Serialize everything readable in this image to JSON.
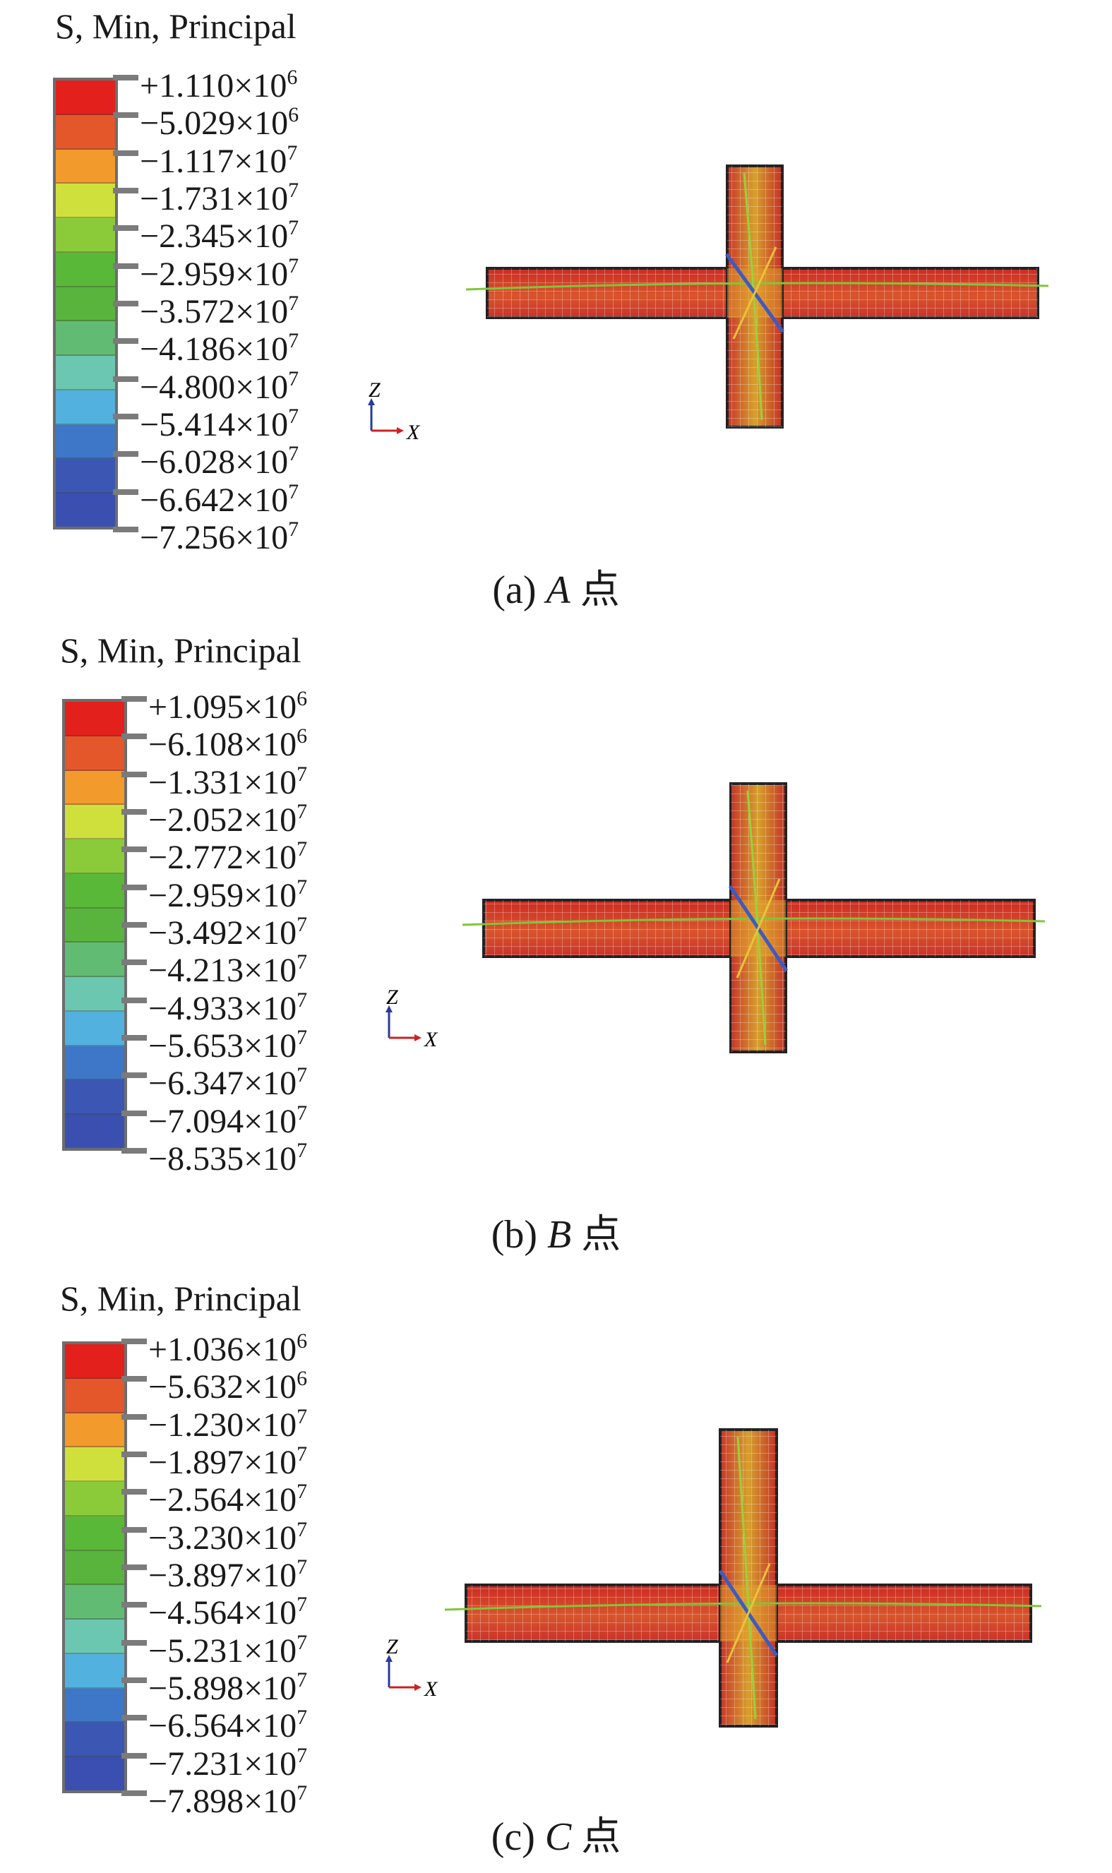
{
  "legend_title": "S, Min, Principal",
  "axis_labels": {
    "z": "Z",
    "x": "X"
  },
  "band_colors": [
    "#e3201c",
    "#e4572a",
    "#f29a2b",
    "#cfe03c",
    "#8bcb3a",
    "#59b838",
    "#58b43d",
    "#62bb72",
    "#6cc7b0",
    "#53b1df",
    "#3e76c8",
    "#3b57b3",
    "#3a4fb0"
  ],
  "panels": [
    {
      "id": "a",
      "caption_prefix": "(a) ",
      "caption_point": "A",
      "caption_suffix": " 点",
      "ticks": [
        {
          "mant": "+1.110×10",
          "exp": "6"
        },
        {
          "mant": "−5.029×10",
          "exp": "6"
        },
        {
          "mant": "−1.117×10",
          "exp": "7"
        },
        {
          "mant": "−1.731×10",
          "exp": "7"
        },
        {
          "mant": "−2.345×10",
          "exp": "7"
        },
        {
          "mant": "−2.959×10",
          "exp": "7"
        },
        {
          "mant": "−3.572×10",
          "exp": "7"
        },
        {
          "mant": "−4.186×10",
          "exp": "7"
        },
        {
          "mant": "−4.800×10",
          "exp": "7"
        },
        {
          "mant": "−5.414×10",
          "exp": "7"
        },
        {
          "mant": "−6.028×10",
          "exp": "7"
        },
        {
          "mant": "−6.642×10",
          "exp": "7"
        },
        {
          "mant": "−7.256×10",
          "exp": "7"
        }
      ]
    },
    {
      "id": "b",
      "caption_prefix": "(b) ",
      "caption_point": "B",
      "caption_suffix": " 点",
      "ticks": [
        {
          "mant": "+1.095×10",
          "exp": "6"
        },
        {
          "mant": "−6.108×10",
          "exp": "6"
        },
        {
          "mant": "−1.331×10",
          "exp": "7"
        },
        {
          "mant": "−2.052×10",
          "exp": "7"
        },
        {
          "mant": "−2.772×10",
          "exp": "7"
        },
        {
          "mant": "−2.959×10",
          "exp": "7"
        },
        {
          "mant": "−3.492×10",
          "exp": "7"
        },
        {
          "mant": "−4.213×10",
          "exp": "7"
        },
        {
          "mant": "−4.933×10",
          "exp": "7"
        },
        {
          "mant": "−5.653×10",
          "exp": "7"
        },
        {
          "mant": "−6.347×10",
          "exp": "7"
        },
        {
          "mant": "−7.094×10",
          "exp": "7"
        },
        {
          "mant": "−8.535×10",
          "exp": "7"
        }
      ]
    },
    {
      "id": "c",
      "caption_prefix": "(c) ",
      "caption_point": "C",
      "caption_suffix": " 点",
      "ticks": [
        {
          "mant": "+1.036×10",
          "exp": "6"
        },
        {
          "mant": "−5.632×10",
          "exp": "6"
        },
        {
          "mant": "−1.230×10",
          "exp": "7"
        },
        {
          "mant": "−1.897×10",
          "exp": "7"
        },
        {
          "mant": "−2.564×10",
          "exp": "7"
        },
        {
          "mant": "−3.230×10",
          "exp": "7"
        },
        {
          "mant": "−3.897×10",
          "exp": "7"
        },
        {
          "mant": "−4.564×10",
          "exp": "7"
        },
        {
          "mant": "−5.231×10",
          "exp": "7"
        },
        {
          "mant": "−5.898×10",
          "exp": "7"
        },
        {
          "mant": "−6.564×10",
          "exp": "7"
        },
        {
          "mant": "−7.231×10",
          "exp": "7"
        },
        {
          "mant": "−7.898×10",
          "exp": "7"
        }
      ]
    }
  ]
}
